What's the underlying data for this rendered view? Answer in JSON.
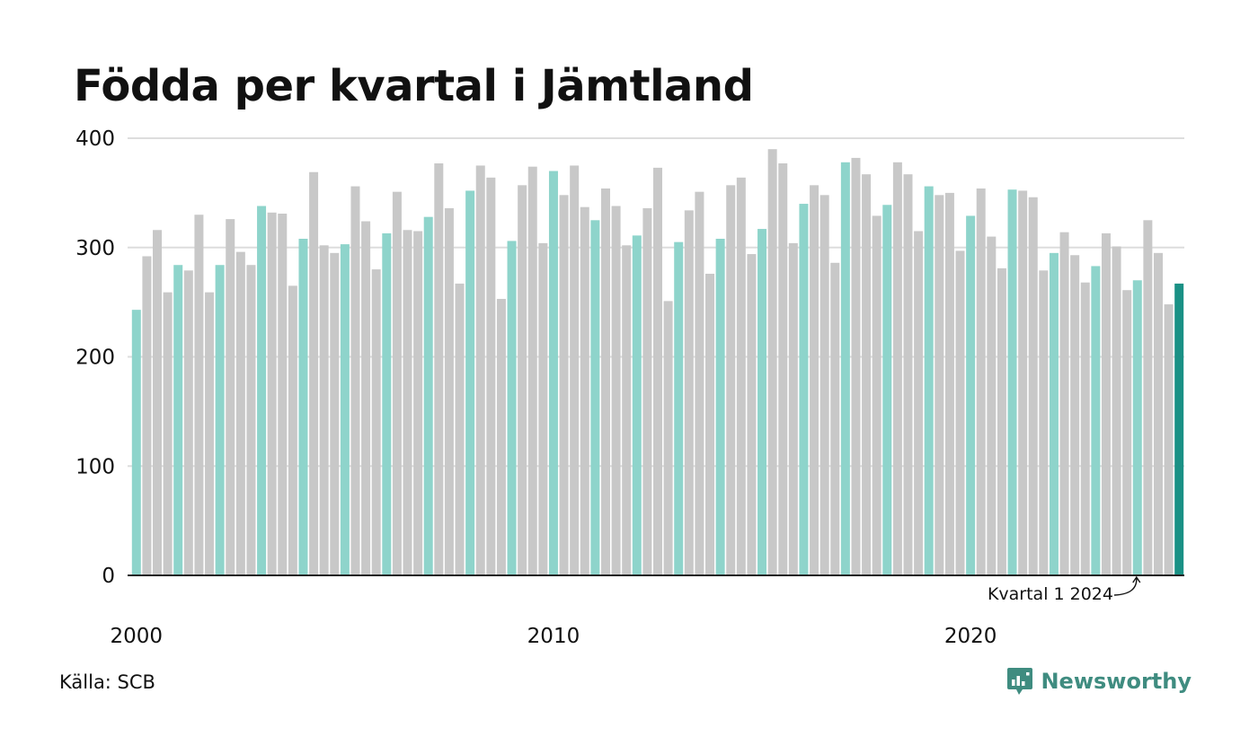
{
  "chart_data": {
    "type": "bar",
    "title": "Födda per kvartal i Jämtland",
    "xlabel": "",
    "ylabel": "",
    "ylim": [
      0,
      400
    ],
    "yticks": [
      "0",
      "100",
      "200",
      "300",
      "400"
    ],
    "xticks": [
      "2000",
      "2010",
      "2020"
    ],
    "grid": true,
    "first_period": "2000 Q1",
    "values": [
      243,
      292,
      316,
      259,
      284,
      279,
      330,
      259,
      284,
      326,
      296,
      284,
      338,
      332,
      331,
      265,
      308,
      369,
      302,
      295,
      303,
      356,
      324,
      280,
      313,
      351,
      316,
      315,
      328,
      377,
      336,
      267,
      352,
      375,
      364,
      253,
      306,
      357,
      374,
      304,
      370,
      348,
      375,
      337,
      325,
      354,
      338,
      302,
      311,
      336,
      373,
      251,
      305,
      334,
      351,
      276,
      308,
      357,
      364,
      294,
      317,
      390,
      377,
      304,
      340,
      357,
      348,
      286,
      378,
      382,
      367,
      329,
      339,
      378,
      367,
      315,
      356,
      348,
      350,
      297,
      329,
      354,
      310,
      281,
      353,
      352,
      346,
      279,
      295,
      314,
      293,
      268,
      283,
      313,
      301,
      261,
      270,
      325,
      295,
      248,
      267
    ],
    "colors": {
      "q1": "#8ed4cb",
      "other": "#c8c8c8",
      "latest": "#1a9185",
      "grid": "#dddddd",
      "axis": "#222222"
    },
    "annotation": {
      "text": "Kvartal 1 2024"
    }
  },
  "footer": {
    "source": "Källa: SCB",
    "brand": "Newsworthy",
    "brand_icon": "chart-bubble-icon"
  }
}
